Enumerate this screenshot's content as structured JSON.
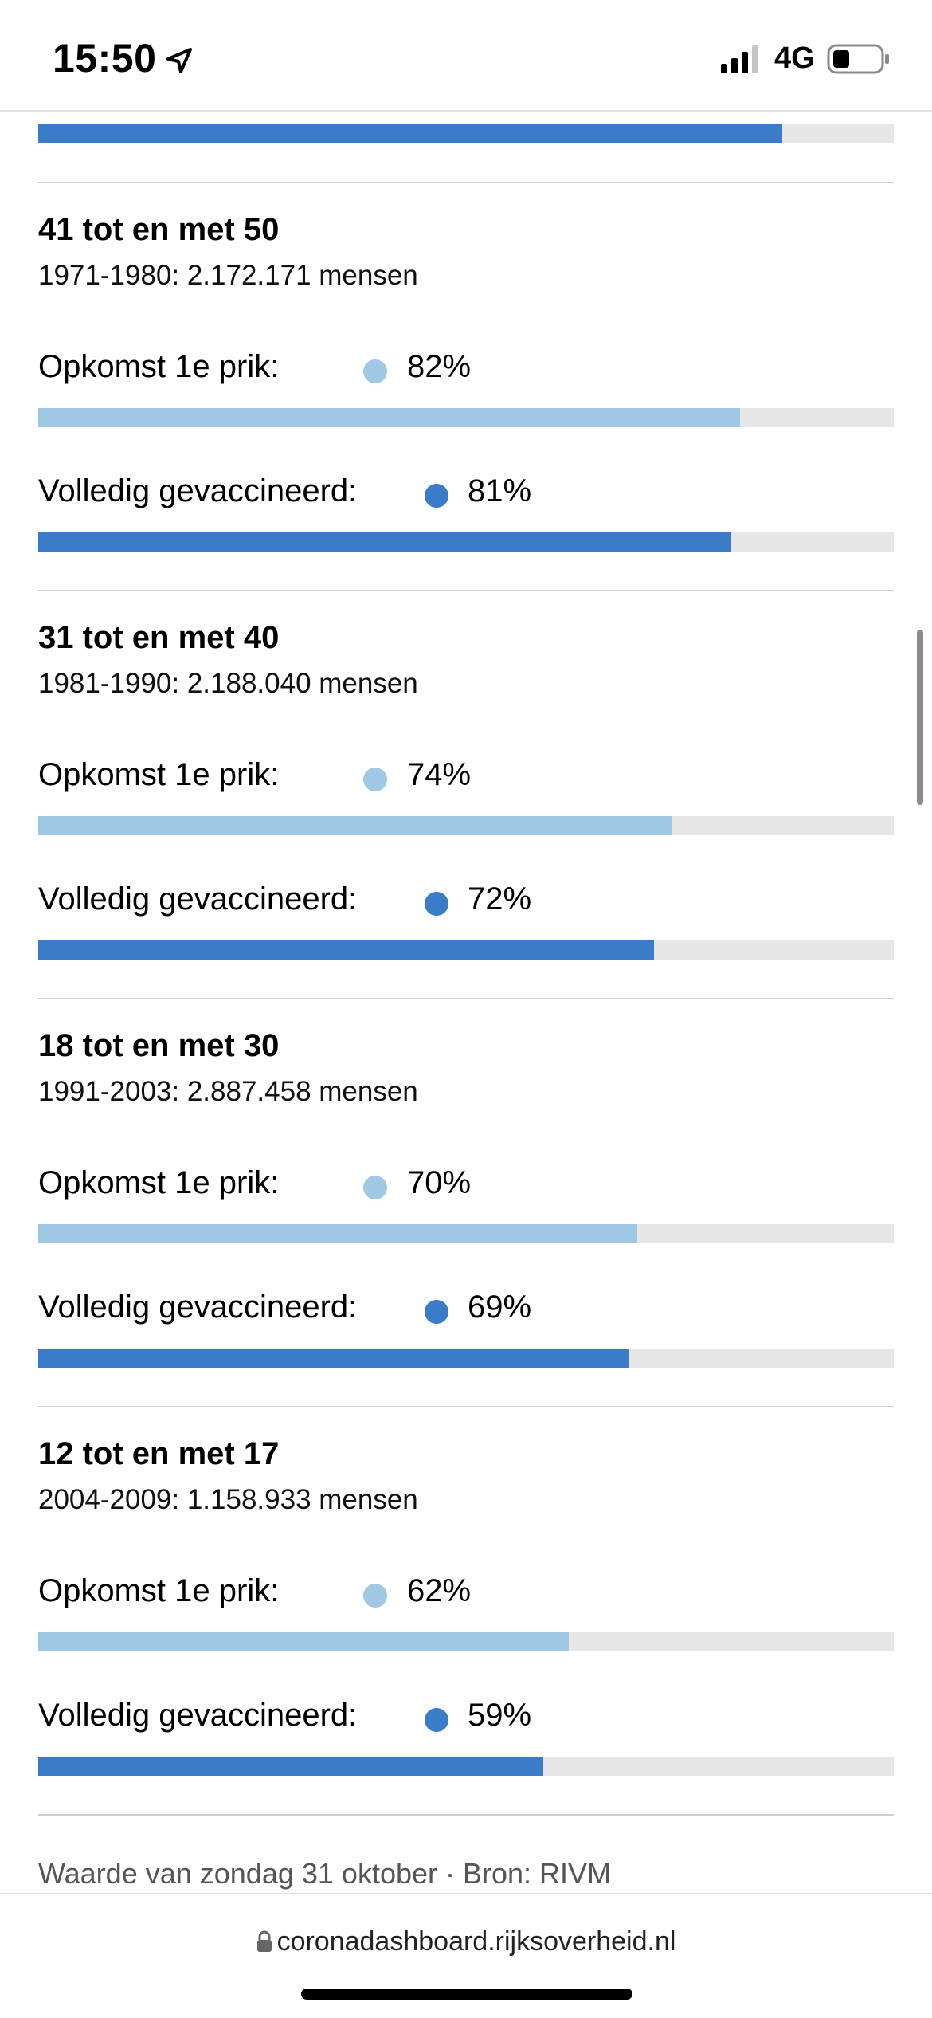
{
  "status_bar": {
    "time": "15:50",
    "network": "4G"
  },
  "colors": {
    "first_dose": "#9ec8e4",
    "fully_vaccinated": "#3a7cc7",
    "track": "#e7e7e7"
  },
  "labels": {
    "first_dose": "Opkomst 1e prik:",
    "fully_vaccinated": "Volledig gevaccineerd:"
  },
  "top_partial_bar": {
    "kind": "fully_vaccinated",
    "fill_fraction": 0.87
  },
  "groups": [
    {
      "title": "41 tot en met 50",
      "subtitle": "1971-1980: 2.172.171 mensen",
      "first_dose_pct": "82%",
      "first_dose_value": 82,
      "fully_pct": "81%",
      "fully_value": 81
    },
    {
      "title": "31 tot en met 40",
      "subtitle": "1981-1990: 2.188.040 mensen",
      "first_dose_pct": "74%",
      "first_dose_value": 74,
      "fully_pct": "72%",
      "fully_value": 72
    },
    {
      "title": "18 tot en met 30",
      "subtitle": "1991-2003: 2.887.458 mensen",
      "first_dose_pct": "70%",
      "first_dose_value": 70,
      "fully_pct": "69%",
      "fully_value": 69
    },
    {
      "title": "12 tot en met 17",
      "subtitle": "2004-2009: 1.158.933 mensen",
      "first_dose_pct": "62%",
      "first_dose_value": 62,
      "fully_pct": "59%",
      "fully_value": 59
    }
  ],
  "footer_note": "Waarde van zondag 31 oktober · Bron: RIVM",
  "url": "coronadashboard.rijksoverheid.nl"
}
